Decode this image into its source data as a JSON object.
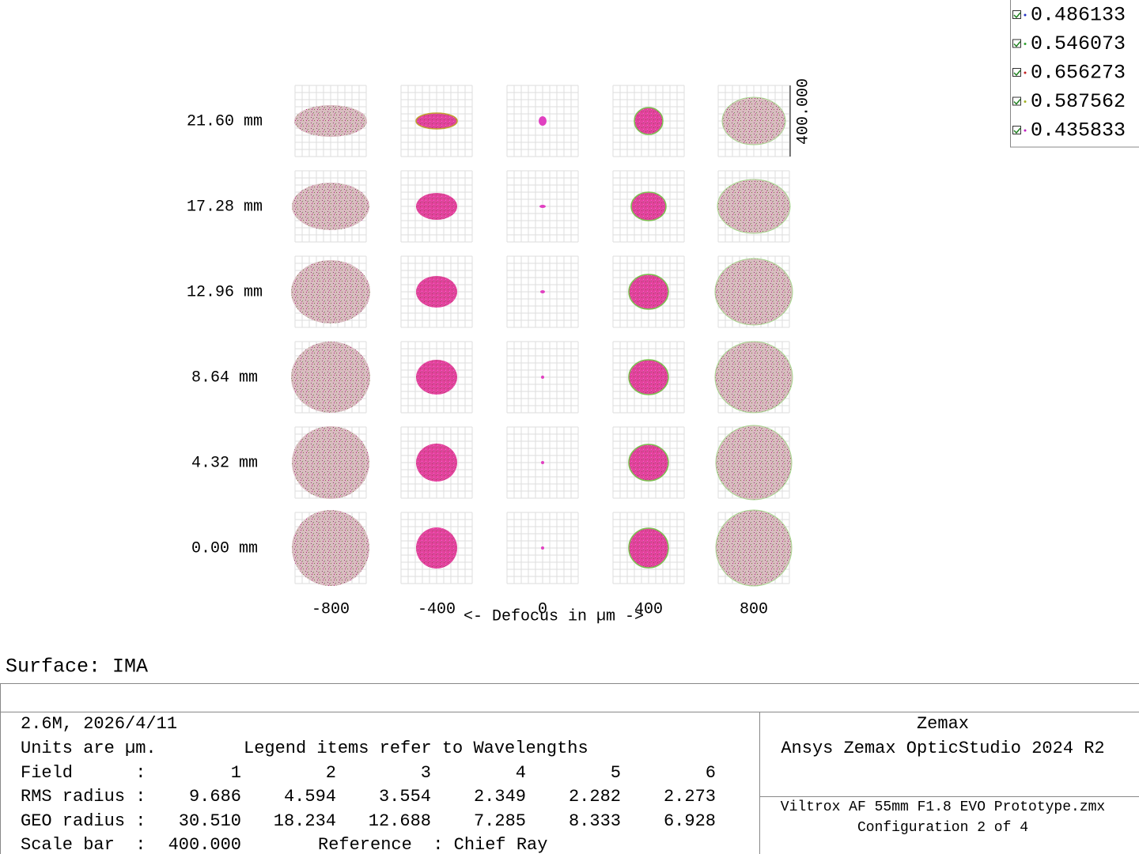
{
  "plot": {
    "rows": [
      "21.60 mm",
      "17.28 mm",
      "12.96 mm",
      "8.64 mm",
      "4.32 mm",
      "0.00 mm"
    ],
    "columns": [
      "-800",
      "-400",
      "0",
      "400",
      "800"
    ],
    "axis_label": "<- Defocus in µm ->",
    "scale_bar": "400.000"
  },
  "legend": [
    "0.486133",
    "0.546073",
    "0.656273",
    "0.587562",
    "0.435833"
  ],
  "surface": "Surface: IMA",
  "info": {
    "date": "2.6M, 2026/4/11",
    "units": "Units are µm.",
    "legend_note": "Legend items refer to Wavelengths",
    "field": {
      "label": "Field      :",
      "values": [
        "1",
        "2",
        "3",
        "4",
        "5",
        "6"
      ]
    },
    "rms": {
      "label": "RMS radius :",
      "values": [
        "9.686",
        "4.594",
        "3.554",
        "2.349",
        "2.282",
        "2.273"
      ]
    },
    "geo": {
      "label": "GEO radius :",
      "values": [
        "30.510",
        "18.234",
        "12.688",
        "7.285",
        "8.333",
        "6.928"
      ]
    },
    "scale": {
      "label": "Scale bar  :",
      "value": "400.000",
      "reference": "Reference  : Chief Ray"
    }
  },
  "footer": {
    "company": "Zemax",
    "product": "Ansys Zemax OpticStudio 2024 R2",
    "file": "Viltrox AF 55mm F1.8 EVO Prototype.zmx",
    "config": "Configuration 2 of 4"
  }
}
